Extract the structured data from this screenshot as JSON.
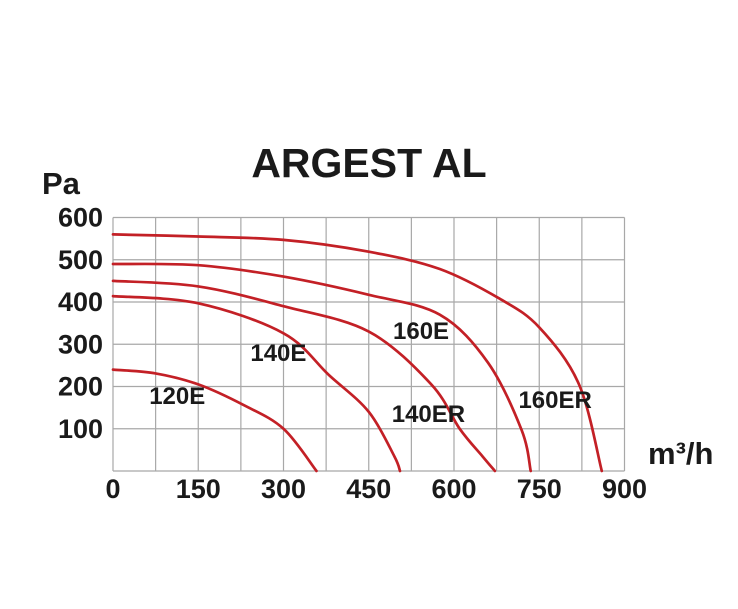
{
  "title": "ARGEST AL",
  "y_unit": "Pa",
  "x_unit": "m³/h",
  "colors": {
    "curve": "#c32026",
    "grid": "#a8a8a8",
    "text": "#1a1a1a",
    "background": "#ffffff"
  },
  "chart_data": {
    "type": "line",
    "title": "ARGEST AL",
    "xlabel": "m³/h",
    "ylabel": "Pa",
    "xlim": [
      0,
      900
    ],
    "ylim": [
      0,
      600
    ],
    "x_tick_labels": [
      0,
      150,
      300,
      450,
      600,
      750,
      900
    ],
    "y_tick_labels": [
      100,
      200,
      300,
      400,
      500,
      600
    ],
    "x_grid_step": 75,
    "y_grid_step": 100,
    "grid": true,
    "legend_position": "inline-annotations",
    "series": [
      {
        "name": "120E",
        "points": [
          [
            0,
            240
          ],
          [
            75,
            231
          ],
          [
            150,
            205
          ],
          [
            230,
            156
          ],
          [
            300,
            100
          ],
          [
            358,
            0
          ]
        ],
        "label_pos": [
          113,
          178
        ]
      },
      {
        "name": "140E",
        "points": [
          [
            0,
            414
          ],
          [
            150,
            397
          ],
          [
            300,
            326
          ],
          [
            380,
            227
          ],
          [
            450,
            140
          ],
          [
            495,
            35
          ],
          [
            505,
            0
          ]
        ],
        "label_pos": [
          291,
          279
        ]
      },
      {
        "name": "140ER",
        "points": [
          [
            0,
            450
          ],
          [
            150,
            437
          ],
          [
            300,
            390
          ],
          [
            450,
            330
          ],
          [
            560,
            205
          ],
          [
            610,
            100
          ],
          [
            650,
            35
          ],
          [
            672,
            0
          ]
        ],
        "label_pos": [
          555,
          135
        ]
      },
      {
        "name": "160E",
        "points": [
          [
            0,
            490
          ],
          [
            150,
            487
          ],
          [
            300,
            460
          ],
          [
            450,
            417
          ],
          [
            575,
            370
          ],
          [
            660,
            256
          ],
          [
            719,
            97
          ],
          [
            735,
            0
          ]
        ],
        "label_pos": [
          542,
          331
        ]
      },
      {
        "name": "160ER",
        "points": [
          [
            0,
            560
          ],
          [
            150,
            555
          ],
          [
            300,
            547
          ],
          [
            450,
            519
          ],
          [
            575,
            478
          ],
          [
            680,
            408
          ],
          [
            750,
            340
          ],
          [
            820,
            205
          ],
          [
            860,
            0
          ]
        ],
        "label_pos": [
          778,
          168
        ]
      }
    ]
  }
}
